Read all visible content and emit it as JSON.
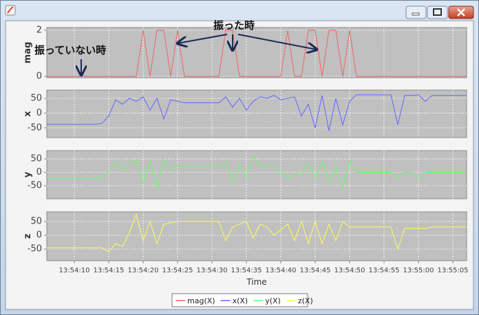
{
  "chart_data": [
    {
      "type": "line",
      "y_label": "mag",
      "x": [
        6,
        7,
        8,
        9,
        10,
        11,
        12,
        13,
        14,
        15,
        16,
        17,
        18,
        19,
        20,
        21,
        22,
        23,
        24,
        25,
        26,
        27,
        28,
        29,
        30,
        31,
        32,
        33,
        34,
        35,
        36,
        37,
        38,
        39,
        40,
        41,
        42,
        43,
        44,
        45,
        46,
        47,
        48,
        49,
        50,
        51,
        52,
        53,
        54,
        55,
        56,
        57,
        58,
        59,
        60,
        61,
        62,
        63,
        64,
        65,
        66,
        67
      ],
      "series": [
        {
          "name": "mag(X)",
          "color": "#f06464",
          "values": [
            0,
            0,
            0,
            0,
            0,
            0,
            0,
            0,
            0,
            0,
            0,
            0,
            0,
            0,
            2,
            0,
            2,
            2,
            0,
            2,
            0,
            0,
            0,
            0,
            0,
            0,
            2,
            2,
            0,
            0,
            0,
            0,
            0,
            0,
            0,
            2,
            0,
            0,
            2,
            2,
            0,
            2,
            2,
            0,
            2,
            0,
            0,
            0,
            0,
            0,
            0,
            0,
            0,
            0,
            0,
            0,
            0,
            0,
            0,
            0,
            0,
            0
          ]
        }
      ],
      "ylim": [
        -0.06,
        2.12
      ],
      "yticks": [
        0,
        2
      ],
      "grid": true,
      "annotations": [
        {
          "text": "振っていない時"
        },
        {
          "text": "振った時"
        }
      ]
    },
    {
      "type": "line",
      "y_label": "x",
      "x": [
        6,
        7,
        8,
        9,
        10,
        11,
        12,
        13,
        14,
        15,
        16,
        17,
        18,
        19,
        20,
        21,
        22,
        23,
        24,
        25,
        26,
        27,
        28,
        29,
        30,
        31,
        32,
        33,
        34,
        35,
        36,
        37,
        38,
        39,
        40,
        41,
        42,
        43,
        44,
        45,
        46,
        47,
        48,
        49,
        50,
        51,
        52,
        53,
        54,
        55,
        56,
        57,
        58,
        59,
        60,
        61,
        62,
        63,
        64,
        65,
        66,
        67
      ],
      "series": [
        {
          "name": "x(X)",
          "color": "#6464ff",
          "values": [
            -38,
            -38,
            -38,
            -38,
            -38,
            -38,
            -38,
            -38,
            -35,
            -10,
            45,
            30,
            50,
            40,
            55,
            10,
            50,
            -20,
            45,
            40,
            35,
            35,
            35,
            35,
            35,
            35,
            55,
            20,
            50,
            10,
            40,
            55,
            50,
            60,
            45,
            50,
            55,
            -10,
            30,
            -50,
            60,
            -60,
            50,
            -40,
            40,
            62,
            62,
            62,
            62,
            62,
            62,
            -40,
            60,
            60,
            62,
            40,
            60,
            60,
            60,
            60,
            60,
            60
          ]
        }
      ],
      "ylim": [
        -83,
        78
      ],
      "yticks": [
        -50,
        0,
        50
      ],
      "grid": true
    },
    {
      "type": "line",
      "y_label": "y",
      "x": [
        6,
        7,
        8,
        9,
        10,
        11,
        12,
        13,
        14,
        15,
        16,
        17,
        18,
        19,
        20,
        21,
        22,
        23,
        24,
        25,
        26,
        27,
        28,
        29,
        30,
        31,
        32,
        33,
        34,
        35,
        36,
        37,
        38,
        39,
        40,
        41,
        42,
        43,
        44,
        45,
        46,
        47,
        48,
        49,
        50,
        51,
        52,
        53,
        54,
        55,
        56,
        57,
        58,
        59,
        60,
        61,
        62,
        63,
        64,
        65,
        66,
        67
      ],
      "series": [
        {
          "name": "y(X)",
          "color": "#64ff64",
          "values": [
            -20,
            -20,
            -20,
            -20,
            -20,
            -20,
            -20,
            -20,
            -18,
            0,
            40,
            10,
            30,
            45,
            -40,
            40,
            -60,
            50,
            10,
            25,
            20,
            20,
            20,
            20,
            20,
            20,
            40,
            -40,
            30,
            -20,
            60,
            20,
            30,
            20,
            0,
            -20,
            -10,
            -10,
            30,
            -20,
            40,
            -40,
            20,
            -60,
            40,
            0,
            0,
            0,
            0,
            0,
            0,
            -20,
            0,
            0,
            -30,
            0,
            0,
            0,
            0,
            0,
            0,
            0
          ]
        }
      ],
      "ylim": [
        -99,
        81
      ],
      "yticks": [
        -50,
        0,
        50
      ],
      "grid": true
    },
    {
      "type": "line",
      "y_label": "z",
      "x_label": "Time",
      "x": [
        6,
        7,
        8,
        9,
        10,
        11,
        12,
        13,
        14,
        15,
        16,
        17,
        18,
        19,
        20,
        21,
        22,
        23,
        24,
        25,
        26,
        27,
        28,
        29,
        30,
        31,
        32,
        33,
        34,
        35,
        36,
        37,
        38,
        39,
        40,
        41,
        42,
        43,
        44,
        45,
        46,
        47,
        48,
        49,
        50,
        51,
        52,
        53,
        54,
        55,
        56,
        57,
        58,
        59,
        60,
        61,
        62,
        63,
        64,
        65,
        66,
        67
      ],
      "series": [
        {
          "name": "z(X)",
          "color": "#ffff50",
          "values": [
            -45,
            -45,
            -45,
            -45,
            -45,
            -45,
            -45,
            -45,
            -45,
            -60,
            -30,
            -40,
            10,
            75,
            -20,
            50,
            -30,
            40,
            45,
            50,
            50,
            50,
            50,
            50,
            50,
            50,
            -20,
            30,
            40,
            50,
            -10,
            40,
            30,
            0,
            20,
            40,
            -20,
            50,
            -30,
            50,
            -30,
            40,
            -20,
            50,
            30,
            30,
            30,
            30,
            30,
            30,
            30,
            -50,
            25,
            25,
            25,
            25,
            30,
            30,
            30,
            30,
            30,
            30
          ]
        }
      ],
      "ylim": [
        -92,
        85
      ],
      "yticks": [
        -50,
        0,
        50
      ],
      "grid": true,
      "xlim": [
        6,
        67
      ],
      "xticks": [
        {
          "value": 10,
          "label": "13:54:10"
        },
        {
          "value": 15,
          "label": "13:54:15"
        },
        {
          "value": 20,
          "label": "13:54:20"
        },
        {
          "value": 25,
          "label": "13:54:25"
        },
        {
          "value": 30,
          "label": "13:54:30"
        },
        {
          "value": 35,
          "label": "13:54:35"
        },
        {
          "value": 40,
          "label": "13:54:40"
        },
        {
          "value": 45,
          "label": "13:54:45"
        },
        {
          "value": 50,
          "label": "13:54:50"
        },
        {
          "value": 55,
          "label": "13:54:55"
        },
        {
          "value": 60,
          "label": "13:55:00"
        },
        {
          "value": 65,
          "label": "13:55:05"
        }
      ]
    }
  ]
}
